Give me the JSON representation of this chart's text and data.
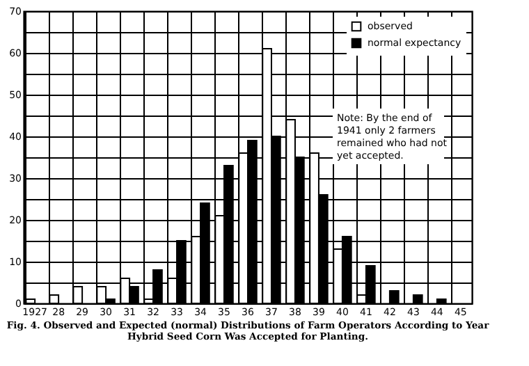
{
  "chart_data": {
    "type": "bar",
    "title": "Fig. 4. Observed and Expected (normal) Distributions of Farm Operators According to Year Hybrid Seed Corn Was Accepted for Planting.",
    "categories": [
      "1927",
      "28",
      "29",
      "30",
      "31",
      "32",
      "33",
      "34",
      "35",
      "36",
      "37",
      "38",
      "39",
      "40",
      "41",
      "42",
      "43",
      "44",
      "45"
    ],
    "series": [
      {
        "name": "observed",
        "color": "#ffffff",
        "values": [
          1,
          2,
          4,
          4,
          6,
          1,
          6,
          16,
          21,
          36,
          61,
          44,
          36,
          13,
          2,
          0,
          0,
          0,
          0
        ]
      },
      {
        "name": "normal expectancy",
        "color": "#000000",
        "values": [
          0,
          0,
          0,
          1,
          4,
          8,
          15,
          24,
          33,
          39,
          40,
          35,
          26,
          16,
          9,
          3,
          2,
          1,
          0
        ]
      }
    ],
    "ylim": [
      0,
      70
    ],
    "yticks": [
      0,
      {
        "value": 5,
        "label": null
      },
      10,
      {
        "value": 15,
        "label": null
      },
      20,
      {
        "value": 25,
        "label": null
      },
      30,
      {
        "value": 35,
        "label": null
      },
      40,
      {
        "value": 45,
        "label": null
      },
      50,
      {
        "value": 55,
        "label": null
      },
      60,
      {
        "value": 65,
        "label": null
      },
      70
    ],
    "grid": true,
    "legend": "top right",
    "annotations": [
      "Note: By the end of 1941 only 2 farmers remained who had not yet accepted."
    ]
  }
}
